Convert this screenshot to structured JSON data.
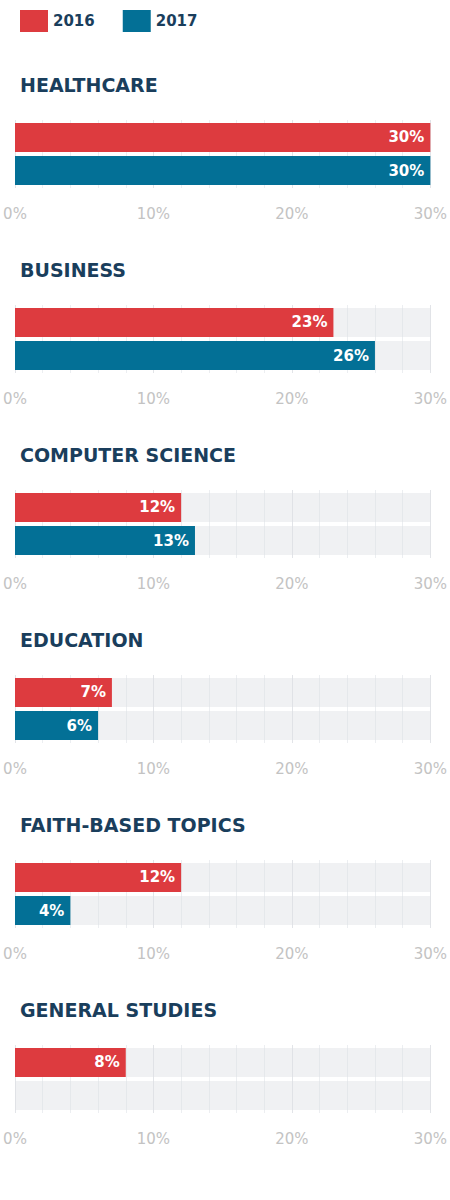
{
  "chart_data": [
    {
      "type": "bar",
      "title": "HEALTHCARE",
      "orientation": "horizontal",
      "legend": "top-left",
      "categories": [
        null
      ],
      "series": [
        {
          "name": "2016",
          "color": "#dd3b3f",
          "values": [
            30
          ],
          "value_labels": [
            "30%"
          ]
        },
        {
          "name": "2017",
          "color": "#037096",
          "values": [
            30
          ],
          "value_labels": [
            "30%"
          ]
        }
      ],
      "xlim": [
        0,
        30
      ],
      "xticks": [
        {
          "value": 0,
          "label": "0%"
        },
        {
          "value": 10,
          "label": "10%"
        },
        {
          "value": 20,
          "label": "20%"
        },
        {
          "value": 30,
          "label": "30%"
        }
      ],
      "grid": true,
      "data_labels": true,
      "tick_labels": "x"
    },
    {
      "type": "bar",
      "title": "BUSINESS",
      "orientation": "horizontal",
      "categories": [
        null
      ],
      "series": [
        {
          "name": "2016",
          "color": "#dd3b3f",
          "values": [
            23
          ],
          "value_labels": [
            "23%"
          ]
        },
        {
          "name": "2017",
          "color": "#037096",
          "values": [
            26
          ],
          "value_labels": [
            "26%"
          ]
        }
      ],
      "xlim": [
        0,
        30
      ],
      "xticks": [
        {
          "value": 0,
          "label": "0%"
        },
        {
          "value": 10,
          "label": "10%"
        },
        {
          "value": 20,
          "label": "20%"
        },
        {
          "value": 30,
          "label": "30%"
        }
      ],
      "grid": true,
      "data_labels": true,
      "tick_labels": "x"
    },
    {
      "type": "bar",
      "title": "COMPUTER SCIENCE",
      "orientation": "horizontal",
      "categories": [
        null
      ],
      "series": [
        {
          "name": "2016",
          "color": "#dd3b3f",
          "values": [
            12
          ],
          "value_labels": [
            "12%"
          ]
        },
        {
          "name": "2017",
          "color": "#037096",
          "values": [
            13
          ],
          "value_labels": [
            "13%"
          ]
        }
      ],
      "xlim": [
        0,
        30
      ],
      "xticks": [
        {
          "value": 0,
          "label": "0%"
        },
        {
          "value": 10,
          "label": "10%"
        },
        {
          "value": 20,
          "label": "20%"
        },
        {
          "value": 30,
          "label": "30%"
        }
      ],
      "grid": true,
      "data_labels": true,
      "tick_labels": "x"
    },
    {
      "type": "bar",
      "title": "EDUCATION",
      "orientation": "horizontal",
      "categories": [
        null
      ],
      "series": [
        {
          "name": "2016",
          "color": "#dd3b3f",
          "values": [
            7
          ],
          "value_labels": [
            "7%"
          ]
        },
        {
          "name": "2017",
          "color": "#037096",
          "values": [
            6
          ],
          "value_labels": [
            "6%"
          ]
        }
      ],
      "xlim": [
        0,
        30
      ],
      "xticks": [
        {
          "value": 0,
          "label": "0%"
        },
        {
          "value": 10,
          "label": "10%"
        },
        {
          "value": 20,
          "label": "20%"
        },
        {
          "value": 30,
          "label": "30%"
        }
      ],
      "grid": true,
      "data_labels": true,
      "tick_labels": "x"
    },
    {
      "type": "bar",
      "title": "FAITH-BASED TOPICS",
      "orientation": "horizontal",
      "categories": [
        null
      ],
      "series": [
        {
          "name": "2016",
          "color": "#dd3b3f",
          "values": [
            12
          ],
          "value_labels": [
            "12%"
          ]
        },
        {
          "name": "2017",
          "color": "#037096",
          "values": [
            4
          ],
          "value_labels": [
            "4%"
          ]
        }
      ],
      "xlim": [
        0,
        30
      ],
      "xticks": [
        {
          "value": 0,
          "label": "0%"
        },
        {
          "value": 10,
          "label": "10%"
        },
        {
          "value": 20,
          "label": "20%"
        },
        {
          "value": 30,
          "label": "30%"
        }
      ],
      "grid": true,
      "data_labels": true,
      "tick_labels": "x"
    },
    {
      "type": "bar",
      "title": "GENERAL STUDIES",
      "orientation": "horizontal",
      "categories": [
        null
      ],
      "series": [
        {
          "name": "2016",
          "color": "#dd3b3f",
          "values": [
            8
          ],
          "value_labels": [
            "8%"
          ]
        },
        {
          "name": "2017",
          "color": "#037096",
          "values": [
            null
          ],
          "value_labels": [
            null
          ]
        }
      ],
      "xlim": [
        0,
        30
      ],
      "xticks": [
        {
          "value": 0,
          "label": "0%"
        },
        {
          "value": 10,
          "label": "10%"
        },
        {
          "value": 20,
          "label": "20%"
        },
        {
          "value": 30,
          "label": "30%"
        }
      ],
      "grid": true,
      "data_labels": true,
      "tick_labels": "x"
    }
  ]
}
